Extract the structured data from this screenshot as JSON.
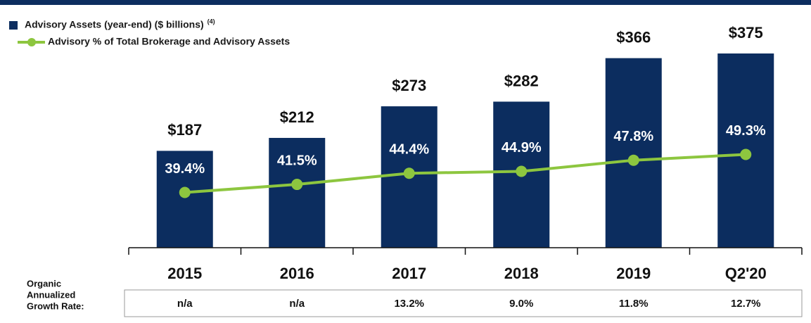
{
  "chart_data": {
    "type": "bar",
    "categories": [
      "2015",
      "2016",
      "2017",
      "2018",
      "2019",
      "Q2'20"
    ],
    "series": [
      {
        "name": "Advisory Assets (year-end) ($ billions)",
        "legend_note": "(4)",
        "type": "bar",
        "color": "#0c2d5f",
        "values": [
          187,
          212,
          273,
          282,
          366,
          375
        ],
        "value_labels": [
          "$187",
          "$212",
          "$273",
          "$282",
          "$366",
          "$375"
        ]
      },
      {
        "name": "Advisory % of Total Brokerage and Advisory Assets",
        "type": "line",
        "axis": "y2",
        "color": "#8dc63f",
        "values": [
          39.4,
          41.5,
          44.4,
          44.9,
          47.8,
          49.3
        ],
        "value_labels": [
          "39.4%",
          "41.5%",
          "44.4%",
          "44.9%",
          "47.8%",
          "49.3%"
        ]
      }
    ],
    "ylim": [
      0,
      400
    ],
    "y2lim": [
      25,
      79
    ],
    "grid": false,
    "table": {
      "label": [
        "Organic",
        "Annualized",
        "Growth Rate:"
      ],
      "values": [
        "n/a",
        "n/a",
        "13.2%",
        "9.0%",
        "11.8%",
        "12.7%"
      ]
    }
  }
}
